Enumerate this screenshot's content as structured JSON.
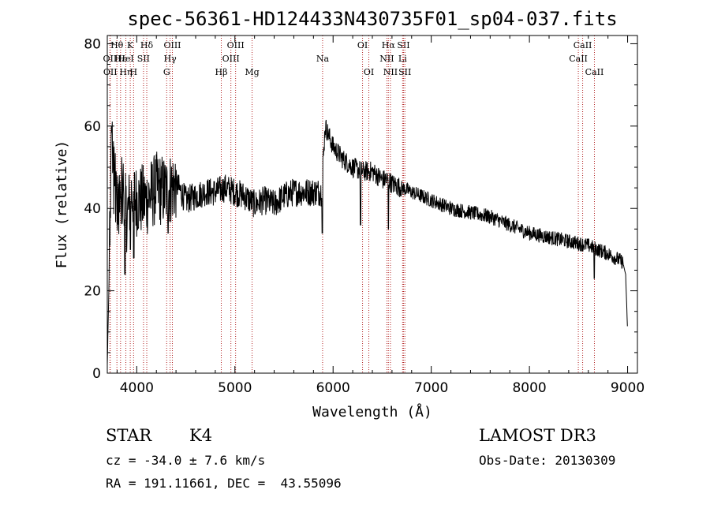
{
  "chart_data": {
    "type": "line",
    "title": "spec-56361-HD124433N430735F01_sp04-037.fits",
    "xlabel": "Wavelength (Å)",
    "ylabel": "Flux (relative)",
    "xlim": [
      3700,
      9100
    ],
    "ylim": [
      0,
      82
    ],
    "x_ticks": [
      4000,
      5000,
      6000,
      7000,
      8000,
      9000
    ],
    "y_ticks": [
      0,
      20,
      40,
      60,
      80
    ],
    "colors": {
      "spectrum": "#000000",
      "lines": "#b22222",
      "axes": "#000000"
    },
    "spectrum_anchors": {
      "x": [
        3700,
        3720,
        3740,
        3760,
        3800,
        3850,
        3900,
        3950,
        4000,
        4100,
        4200,
        4300,
        4400,
        4500,
        4600,
        4700,
        4800,
        4900,
        5000,
        5100,
        5200,
        5300,
        5400,
        5500,
        5600,
        5700,
        5800,
        5880,
        5920,
        6000,
        6100,
        6200,
        6300,
        6400,
        6500,
        6560,
        6600,
        6700,
        6800,
        6900,
        7000,
        7200,
        7400,
        7600,
        7800,
        8000,
        8200,
        8400,
        8600,
        8800,
        8950,
        8980,
        9000
      ],
      "y": [
        2,
        25,
        58,
        48,
        42,
        44,
        38,
        44,
        42,
        42,
        45,
        44,
        46,
        42,
        43,
        44,
        44,
        45,
        44,
        43,
        41,
        42,
        41,
        43,
        44,
        44,
        44,
        44,
        60,
        55,
        52,
        50,
        49,
        49,
        47,
        47,
        46,
        45,
        44,
        43,
        42,
        40,
        39,
        38,
        36,
        34,
        33,
        32,
        31,
        29,
        27,
        24,
        10
      ]
    },
    "spectrum_dips": [
      {
        "x": 3880,
        "y": 24
      },
      {
        "x": 3935,
        "y": 30
      },
      {
        "x": 3970,
        "y": 28
      },
      {
        "x": 4320,
        "y": 34
      },
      {
        "x": 5890,
        "y": 34
      },
      {
        "x": 6280,
        "y": 36
      },
      {
        "x": 6563,
        "y": 35
      },
      {
        "x": 8660,
        "y": 23
      }
    ],
    "spectrum_noise": [
      {
        "from": 3700,
        "to": 4400,
        "amplitude": 9
      },
      {
        "from": 4400,
        "to": 5900,
        "amplitude": 3.5
      },
      {
        "from": 5900,
        "to": 6700,
        "amplitude": 2.5
      },
      {
        "from": 6700,
        "to": 9000,
        "amplitude": 1.8
      }
    ],
    "line_markers": [
      {
        "label": "Hθ",
        "x": 3798,
        "row": 0
      },
      {
        "label": "OII",
        "x": 3727,
        "row": 1
      },
      {
        "label": "OII",
        "x": 3730,
        "row": 2
      },
      {
        "label": "Hε",
        "x": 3835,
        "row": 1
      },
      {
        "label": "Hη",
        "x": 3889,
        "row": 2
      },
      {
        "label": "K",
        "x": 3934,
        "row": 0
      },
      {
        "label": "HeI",
        "x": 3889,
        "row": 1
      },
      {
        "label": "H",
        "x": 3968,
        "row": 2
      },
      {
        "label": "SII",
        "x": 4069,
        "row": 1
      },
      {
        "label": "Hδ",
        "x": 4102,
        "row": 0
      },
      {
        "label": "OIII",
        "x": 4363,
        "row": 0
      },
      {
        "label": "Hγ",
        "x": 4340,
        "row": 1
      },
      {
        "label": "G",
        "x": 4305,
        "row": 2
      },
      {
        "label": "Hβ",
        "x": 4861,
        "row": 2
      },
      {
        "label": "OIII",
        "x": 5007,
        "row": 0
      },
      {
        "label": "OIII",
        "x": 4959,
        "row": 1
      },
      {
        "label": "Mg",
        "x": 5175,
        "row": 2
      },
      {
        "label": "Na",
        "x": 5893,
        "row": 1
      },
      {
        "label": "OI",
        "x": 6300,
        "row": 0
      },
      {
        "label": "OI",
        "x": 6364,
        "row": 2
      },
      {
        "label": "Hα",
        "x": 6563,
        "row": 0
      },
      {
        "label": "NII",
        "x": 6548,
        "row": 1
      },
      {
        "label": "NII",
        "x": 6584,
        "row": 2
      },
      {
        "label": "SII",
        "x": 6717,
        "row": 0
      },
      {
        "label": "Li",
        "x": 6708,
        "row": 1
      },
      {
        "label": "SII",
        "x": 6731,
        "row": 2
      },
      {
        "label": "CaII",
        "x": 8542,
        "row": 0
      },
      {
        "label": "CaII",
        "x": 8498,
        "row": 1
      },
      {
        "label": "CaII",
        "x": 8662,
        "row": 2
      }
    ]
  },
  "info": {
    "class": "STAR",
    "subclass": "K4",
    "survey": "LAMOST DR3",
    "redshift": "cz = -34.0 ± 7.6 km/s",
    "obs_date": "Obs-Date: 20130309",
    "coords": "RA = 191.11661, DEC =  43.55096"
  }
}
